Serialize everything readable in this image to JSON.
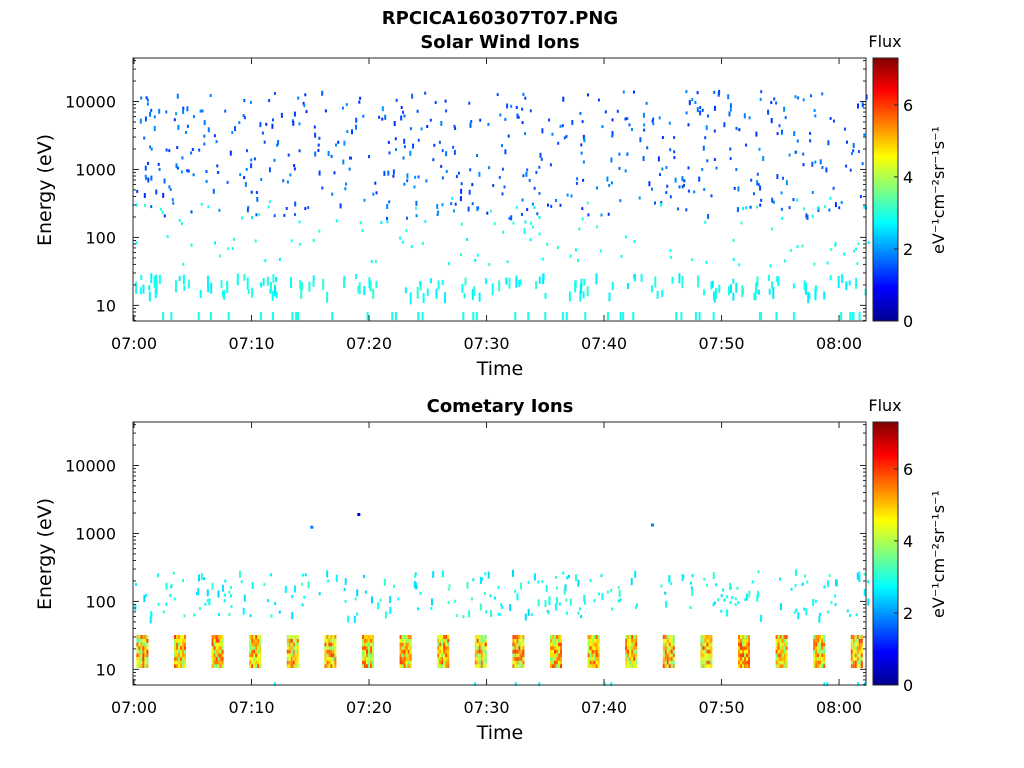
{
  "figure": {
    "filename": "RPCICA160307T07.PNG"
  },
  "colors": {
    "axis": "#262626",
    "colormap": [
      "#00008f",
      "#0000ff",
      "#00ffff",
      "#ffff00",
      "#ff0000",
      "#800000"
    ]
  },
  "panels": [
    {
      "title": "Solar Wind Ions",
      "ylabel": "Energy (eV)",
      "xlabel": "Time",
      "colorbar_title": "Flux",
      "colorbar_unit": "eV⁻¹cm⁻²sr⁻¹s⁻¹"
    },
    {
      "title": "Cometary Ions",
      "ylabel": "Energy (eV)",
      "xlabel": "Time",
      "colorbar_title": "Flux",
      "colorbar_unit": "eV⁻¹cm⁻²sr⁻¹s⁻¹"
    }
  ],
  "chart_data": [
    {
      "type": "heatmap",
      "title": "Solar Wind Ions",
      "xlabel": "Time",
      "ylabel": "Energy (eV)",
      "x_tick_labels": [
        "07:00",
        "07:10",
        "07:20",
        "07:30",
        "07:40",
        "07:50",
        "08:00"
      ],
      "y_tick_labels": [
        "10",
        "100",
        "1000",
        "10000"
      ],
      "y_scale": "log",
      "colorbar": {
        "label": "Flux",
        "ticks": [
          "0",
          "2",
          "4",
          "6"
        ],
        "range": [
          0,
          7.3
        ]
      },
      "features": {
        "speckle_energy_range_eV": [
          200,
          15000
        ],
        "speckle_flux_typical": 1.6,
        "low_energy_bands_eV": [
          [
            15,
            30
          ],
          [
            6,
            8
          ]
        ],
        "low_energy_flux_typical": 2.8
      }
    },
    {
      "type": "heatmap",
      "title": "Cometary Ions",
      "xlabel": "Time",
      "ylabel": "Energy (eV)",
      "x_tick_labels": [
        "07:00",
        "07:10",
        "07:20",
        "07:30",
        "07:40",
        "07:50",
        "08:00"
      ],
      "y_tick_labels": [
        "10",
        "100",
        "1000",
        "10000"
      ],
      "y_scale": "log",
      "colorbar": {
        "label": "Flux",
        "ticks": [
          "0",
          "2",
          "4",
          "6"
        ],
        "range": [
          0,
          7.3
        ]
      },
      "features": {
        "periodic_band_energy_eV": [
          12,
          32
        ],
        "periodic_band_flux_range": [
          3.5,
          6.0
        ],
        "scatter_energy_range_eV": [
          60,
          300
        ],
        "scatter_flux_typical": 2.8,
        "isolated_points_eV": [
          1300,
          2000,
          1400
        ]
      }
    }
  ]
}
